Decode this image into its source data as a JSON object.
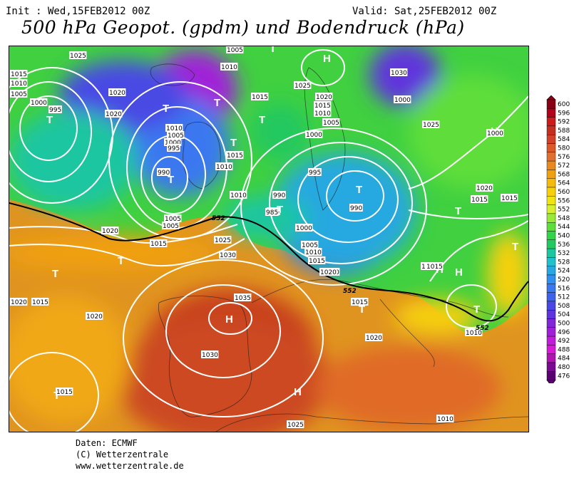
{
  "header": {
    "init": "Init : Wed,15FEB2012 00Z",
    "valid": "Valid: Sat,25FEB2012 00Z",
    "title": "500 hPa Geopot. (gpdm) und Bodendruck (hPa)"
  },
  "credits": [
    "Daten: ECMWF",
    "(C) Wetterzentrale",
    "www.wetterzentrale.de"
  ],
  "legend": {
    "values": [
      "600",
      "596",
      "592",
      "588",
      "584",
      "580",
      "576",
      "572",
      "568",
      "564",
      "560",
      "556",
      "552",
      "548",
      "544",
      "540",
      "536",
      "532",
      "528",
      "524",
      "520",
      "516",
      "512",
      "508",
      "504",
      "500",
      "496",
      "492",
      "488",
      "484",
      "480",
      "476"
    ],
    "colors": [
      "#8a0015",
      "#b0001a",
      "#cc1b1b",
      "#c43020",
      "#d2422a",
      "#da5a2a",
      "#e07030",
      "#e88a20",
      "#f0a010",
      "#f3bb0b",
      "#f6d00a",
      "#f0e410",
      "#d6f030",
      "#9ae838",
      "#5ede3a",
      "#34d44a",
      "#22c860",
      "#1cc6a0",
      "#20c0cc",
      "#28a8e0",
      "#3090f0",
      "#3a78f0",
      "#3e62ec",
      "#4a48e4",
      "#6034dc",
      "#8028d8",
      "#a020d8",
      "#c01cdc",
      "#d81ad8",
      "#b014b0",
      "#7a0a90",
      "#5a0070"
    ]
  },
  "map": {
    "pressure_centers": [
      {
        "type": "T",
        "label": "T"
      },
      {
        "type": "T",
        "label": "T"
      },
      {
        "type": "T",
        "label": "T"
      },
      {
        "type": "T",
        "label": "T"
      },
      {
        "type": "T",
        "label": "T"
      },
      {
        "type": "T",
        "label": "T"
      },
      {
        "type": "T",
        "label": "T"
      },
      {
        "type": "T",
        "label": "T"
      },
      {
        "type": "T",
        "label": "T"
      },
      {
        "type": "T",
        "label": "T"
      },
      {
        "type": "T",
        "label": "T"
      },
      {
        "type": "T",
        "label": "T"
      },
      {
        "type": "T",
        "label": "T"
      },
      {
        "type": "T",
        "label": "T"
      },
      {
        "type": "T",
        "label": "T"
      },
      {
        "type": "T",
        "label": "T"
      },
      {
        "type": "H",
        "label": "H"
      },
      {
        "type": "H",
        "label": "H"
      },
      {
        "type": "H",
        "label": "H"
      },
      {
        "type": "H",
        "label": "H"
      },
      {
        "type": "H",
        "label": "H"
      },
      {
        "type": "H",
        "label": "H"
      },
      {
        "type": "H",
        "label": "H"
      }
    ],
    "isobar_labels": [
      "1025",
      "1005",
      "1010",
      "1005",
      "1020",
      "1015",
      "1010",
      "1005",
      "995",
      "1000",
      "1020",
      "1010",
      "1005",
      "1000",
      "995",
      "990",
      "1010",
      "1015",
      "1015",
      "1025",
      "1020",
      "1015",
      "1010",
      "1005",
      "1000",
      "995",
      "990",
      "990",
      "995",
      "985",
      "1000",
      "1005",
      "1010",
      "1015",
      "1020",
      "1005",
      "1010",
      "1030",
      "1000",
      "1025",
      "1020",
      "1015",
      "1015",
      "1000",
      "1005",
      "1020",
      "1015",
      "1025",
      "1030",
      "1020",
      "1035",
      "1020",
      "1015",
      "1030",
      "1020",
      "1010",
      "1025",
      "1015",
      "1020",
      "1015",
      "1020",
      "1010",
      "1015"
    ],
    "geopotential_labels": [
      "552",
      "552",
      "552"
    ]
  }
}
